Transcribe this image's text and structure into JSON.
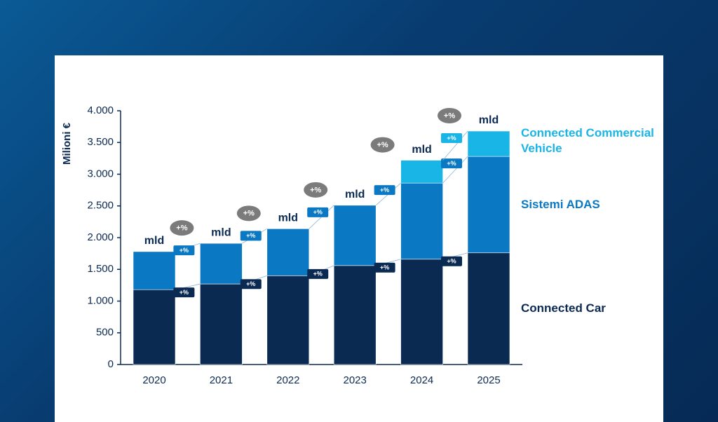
{
  "chart_data": {
    "type": "stacked_bar",
    "y_label": "Milioni €",
    "categories": [
      "2020",
      "2021",
      "2022",
      "2023",
      "2024",
      "2025"
    ],
    "series": [
      {
        "name": "Connected Car",
        "color": "#0b2a52",
        "values": [
          1180,
          1270,
          1400,
          1560,
          1660,
          1760
        ],
        "growth_labels": [
          null,
          "+%",
          "+%",
          "+%",
          "+%",
          "+%"
        ]
      },
      {
        "name": "Sistemi ADAS",
        "color": "#0a78c2",
        "values": [
          600,
          640,
          740,
          950,
          1200,
          1520
        ],
        "growth_labels": [
          null,
          "+%",
          "+%",
          "+%",
          "+%",
          "+%"
        ]
      },
      {
        "name": "Connected Commercial Vehicle",
        "color": "#19b5e6",
        "values": [
          null,
          null,
          null,
          null,
          360,
          400
        ],
        "growth_labels": [
          null,
          null,
          null,
          null,
          null,
          "+%"
        ]
      }
    ],
    "total_labels": [
      "mld",
      "mld",
      "mld",
      "mld",
      "mld",
      "mld"
    ],
    "total_growth_labels": [
      null,
      "+%",
      "+%",
      "+%",
      "+%",
      "+%"
    ],
    "ylim": [
      0,
      4000
    ],
    "yticks": [
      0,
      500,
      {
        "value": 1000,
        "label": "1.000"
      },
      {
        "value": 1500,
        "label": "1.500"
      },
      {
        "value": 2000,
        "label": "2.000"
      },
      {
        "value": 2500,
        "label": "2.500"
      },
      {
        "value": 3000,
        "label": "3.000"
      },
      {
        "value": 3500,
        "label": "3.500"
      },
      {
        "value": 4000,
        "label": "4.000"
      }
    ]
  }
}
